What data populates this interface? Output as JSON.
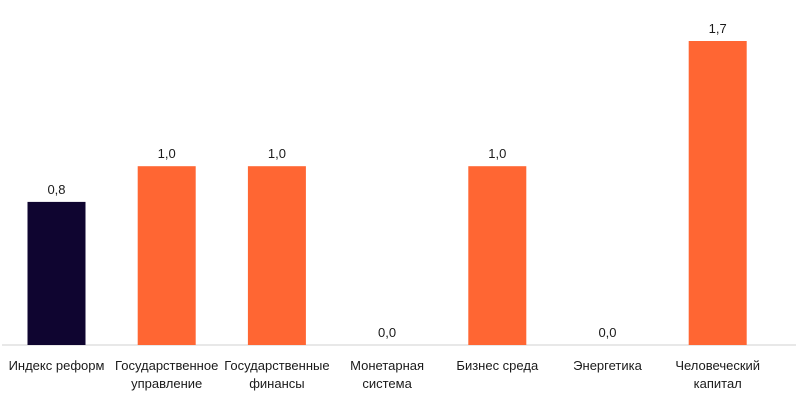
{
  "chart_data": {
    "type": "bar",
    "categories": [
      "Индекс реформ",
      "Государственное управление",
      "Государственные финансы",
      "Монетарная система",
      "Бизнес среда",
      "Энергетика",
      "Человеческий капитал"
    ],
    "category_lines": [
      [
        "Индекс реформ"
      ],
      [
        "Государственное",
        "управление"
      ],
      [
        "Государственные",
        "финансы"
      ],
      [
        "Монетарная",
        "система"
      ],
      [
        "Бизнес среда"
      ],
      [
        "Энергетика"
      ],
      [
        "Человеческий",
        "капитал"
      ]
    ],
    "values": [
      0.8,
      1.0,
      1.0,
      0.0,
      1.0,
      0.0,
      1.7
    ],
    "value_labels": [
      "0,8",
      "1,0",
      "1,0",
      "0,0",
      "1,0",
      "0,0",
      "1,7"
    ],
    "bar_colors": [
      "#0f0530",
      "#ff6633",
      "#ff6633",
      "#ff6633",
      "#ff6633",
      "#ff6633",
      "#ff6633"
    ],
    "ylim": [
      0,
      1.7
    ],
    "grid": false,
    "legend": "none"
  }
}
